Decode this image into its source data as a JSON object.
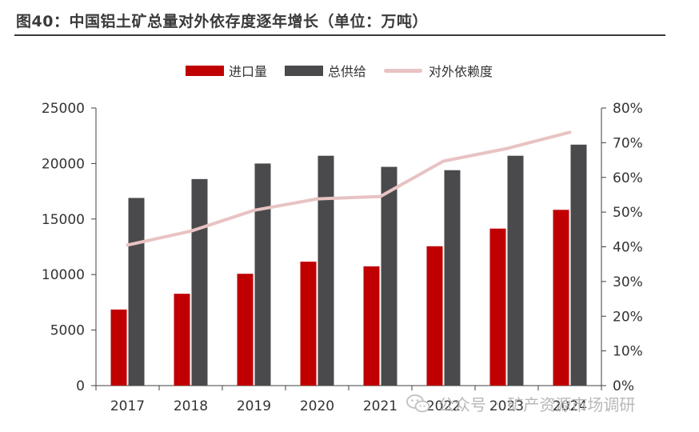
{
  "header": {
    "title": "图40：中国铝土矿总量对外依存度逐年增长（单位：万吨）"
  },
  "watermark": {
    "platform": "公众号",
    "separator": "·",
    "account": "矿产资源市场调研"
  },
  "colors": {
    "import": "#c00000",
    "supply": "#4a4a4c",
    "dependency": "#e8c3c3",
    "axis": "#404040",
    "text": "#333333"
  },
  "chart_data": {
    "type": "bar",
    "title": "图40：中国铝土矿总量对外依存度逐年增长（单位：万吨）",
    "categories": [
      "2017",
      "2018",
      "2019",
      "2020",
      "2021",
      "2022",
      "2023",
      "2024"
    ],
    "series": [
      {
        "name": "进口量",
        "kind": "bar",
        "axis": "left",
        "values": [
          6850,
          8270,
          10070,
          11160,
          10740,
          12550,
          14140,
          15830
        ]
      },
      {
        "name": "总供给",
        "kind": "bar",
        "axis": "left",
        "values": [
          16900,
          18600,
          20000,
          20700,
          19700,
          19400,
          20700,
          21700
        ]
      },
      {
        "name": "对外依赖度",
        "kind": "line",
        "axis": "right",
        "values": [
          0.405,
          0.445,
          0.505,
          0.538,
          0.545,
          0.647,
          0.683,
          0.73
        ]
      }
    ],
    "y_left": {
      "min": 0,
      "max": 25000,
      "ticks": [
        "0",
        "5000",
        "10000",
        "15000",
        "20000",
        "25000"
      ]
    },
    "y_right": {
      "min": 0,
      "max": 0.8,
      "ticks": [
        "0%",
        "10%",
        "20%",
        "30%",
        "40%",
        "50%",
        "60%",
        "70%",
        "80%"
      ]
    },
    "legend_position": "top-center",
    "grid": false
  }
}
